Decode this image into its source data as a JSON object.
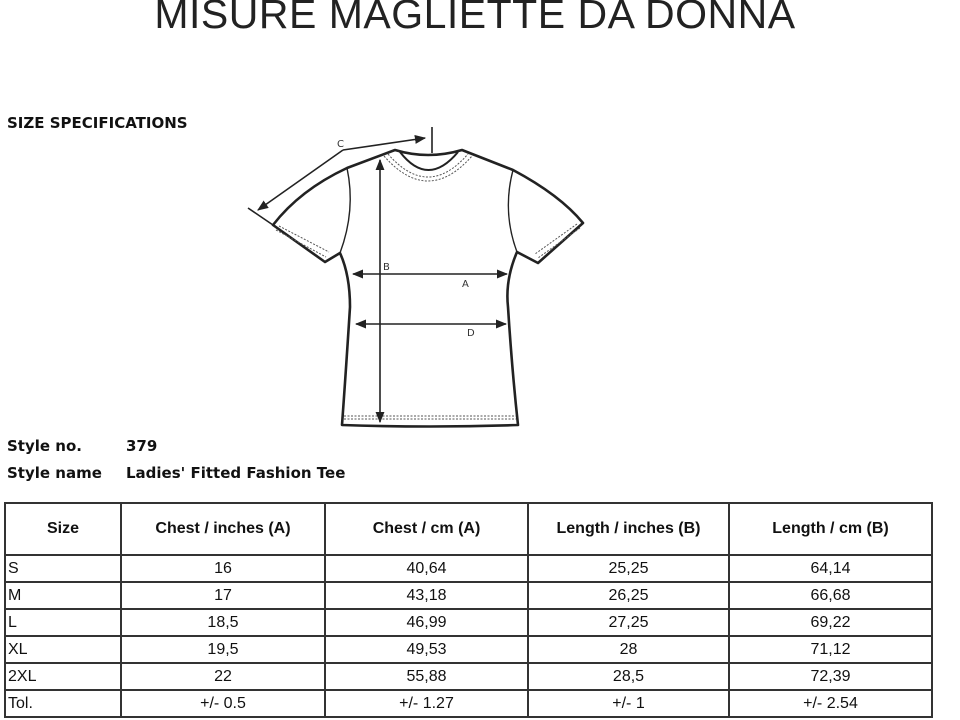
{
  "title": "MISURE MAGLIETTE DA DONNA",
  "section_heading": "SIZE SPECIFICATIONS",
  "diagram": {
    "labels": {
      "a": "A",
      "b": "B",
      "c": "C",
      "d": "D"
    }
  },
  "style": {
    "number_label": "Style no.",
    "number_value": "379",
    "name_label": "Style name",
    "name_value": "Ladies' Fitted Fashion Tee"
  },
  "table": {
    "headers": [
      "Size",
      "Chest / inches (A)",
      "Chest / cm (A)",
      "Length / inches (B)",
      "Length / cm (B)"
    ],
    "rows": [
      [
        "S",
        "16",
        "40,64",
        "25,25",
        "64,14"
      ],
      [
        "M",
        "17",
        "43,18",
        "26,25",
        "66,68"
      ],
      [
        "L",
        "18,5",
        "46,99",
        "27,25",
        "69,22"
      ],
      [
        "XL",
        "19,5",
        "49,53",
        "28",
        "71,12"
      ],
      [
        "2XL",
        "22",
        "55,88",
        "28,5",
        "72,39"
      ],
      [
        "Tol.",
        "+/- 0.5",
        "+/- 1.27",
        "+/- 1",
        "+/- 2.54"
      ]
    ]
  }
}
